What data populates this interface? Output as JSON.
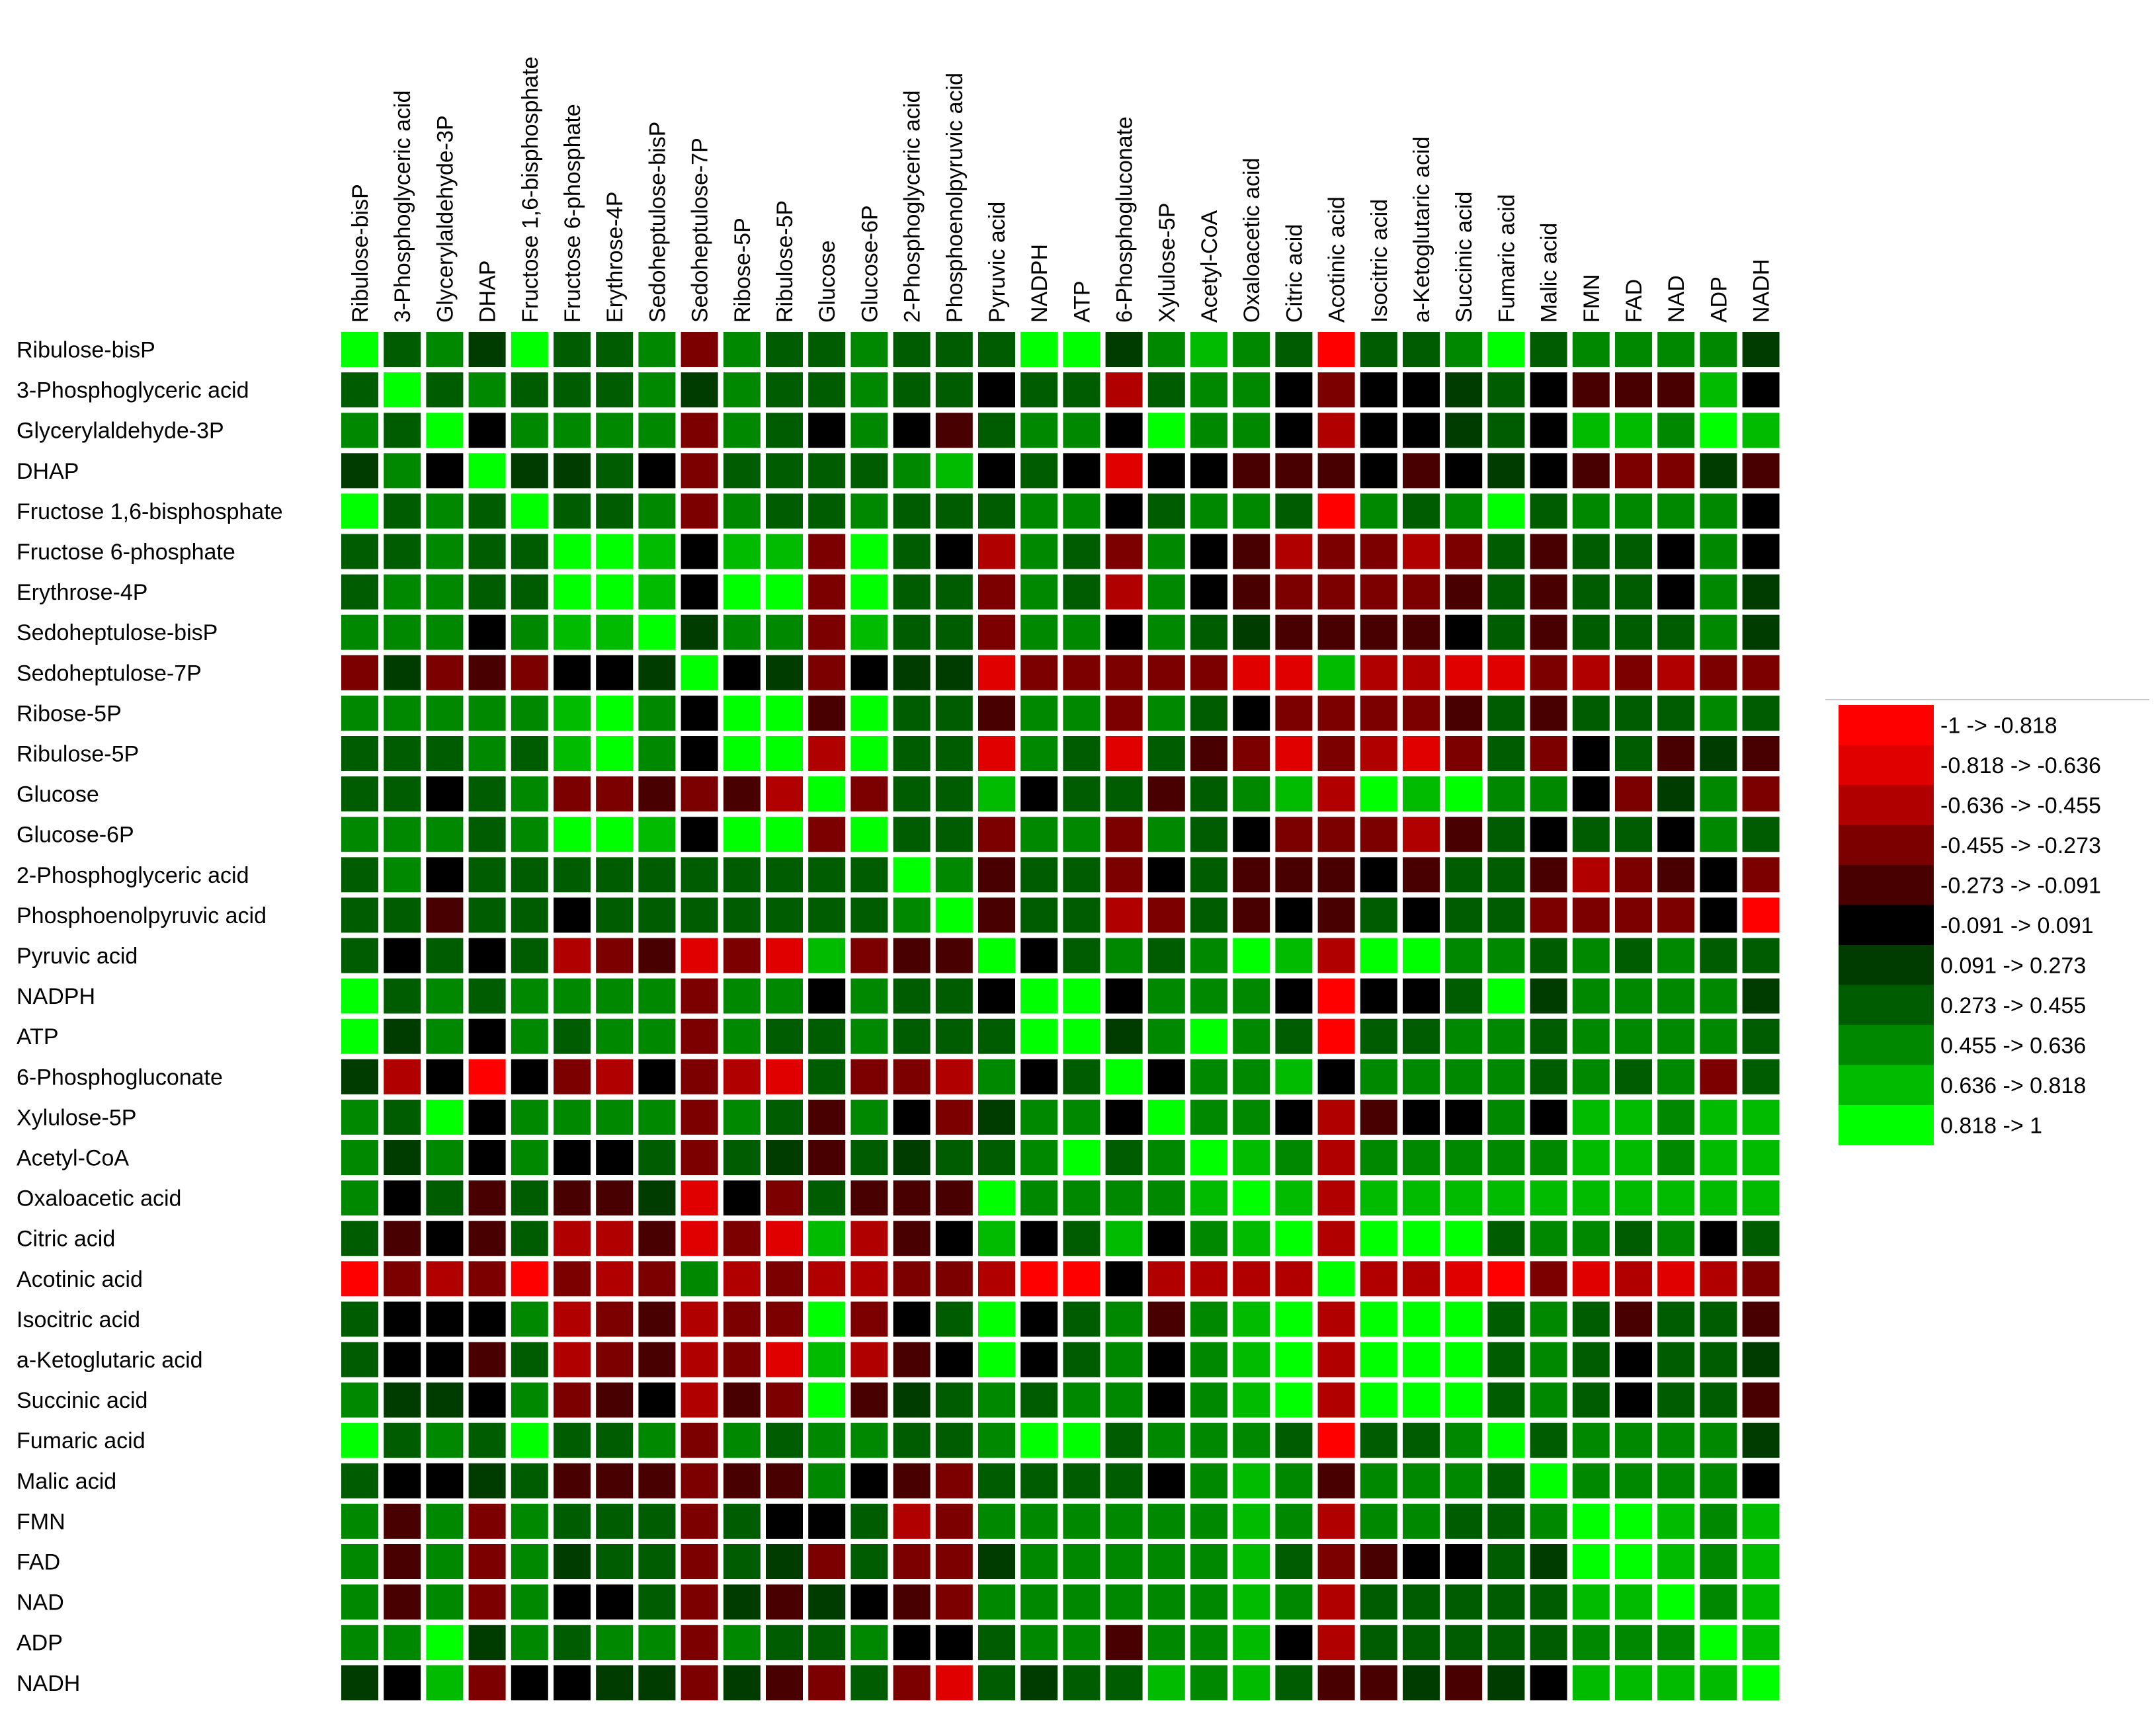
{
  "chart_data": {
    "type": "heatmap",
    "title": "",
    "rows": [
      "Ribulose-bisP",
      "3-Phosphoglyceric acid",
      "Glycerylaldehyde-3P",
      "DHAP",
      "Fructose 1,6-bisphosphate",
      "Fructose 6-phosphate",
      "Erythrose-4P",
      "Sedoheptulose-bisP",
      "Sedoheptulose-7P",
      "Ribose-5P",
      "Ribulose-5P",
      "Glucose",
      "Glucose-6P",
      "2-Phosphoglyceric acid",
      "Phosphoenolpyruvic acid",
      "Pyruvic acid",
      "NADPH",
      "ATP",
      "6-Phosphogluconate",
      "Xylulose-5P",
      "Acetyl-CoA",
      "Oxaloacetic acid",
      "Citric acid",
      "Acotinic acid",
      "Isocitric acid",
      "a-Ketoglutaric acid",
      "Succinic acid",
      "Fumaric acid",
      "Malic acid",
      "FMN",
      "FAD",
      "NAD",
      "ADP",
      "NADH"
    ],
    "columns": [
      "Ribulose-bisP",
      "3-Phosphoglyceric acid",
      "Glycerylaldehyde-3P",
      "DHAP",
      "Fructose 1,6-bisphosphate",
      "Fructose 6-phosphate",
      "Erythrose-4P",
      "Sedoheptulose-bisP",
      "Sedoheptulose-7P",
      "Ribose-5P",
      "Ribulose-5P",
      "Glucose",
      "Glucose-6P",
      "2-Phosphoglyceric acid",
      "Phosphoenolpyruvic acid",
      "Pyruvic acid",
      "NADPH",
      "ATP",
      "6-Phosphogluconate",
      "Xylulose-5P",
      "Acetyl-CoA",
      "Oxaloacetic acid",
      "Citric acid",
      "Acotinic acid",
      "Isocitric acid",
      "a-Ketoglutaric acid",
      "Succinic acid",
      "Fumaric acid",
      "Malic acid",
      "FMN",
      "FAD",
      "NAD",
      "ADP",
      "NADH"
    ],
    "legend": {
      "position": "right",
      "bins": [
        {
          "label": "-1 -> -0.818",
          "color": "#ff0000"
        },
        {
          "label": "-0.818 -> -0.636",
          "color": "#e00000"
        },
        {
          "label": "-0.636 -> -0.455",
          "color": "#b00000"
        },
        {
          "label": "-0.455 -> -0.273",
          "color": "#7d0000"
        },
        {
          "label": "-0.273 -> -0.091",
          "color": "#480000"
        },
        {
          "label": "-0.091 -> 0.091",
          "color": "#000000"
        },
        {
          "label": "0.091 -> 0.273",
          "color": "#003b00"
        },
        {
          "label": "0.273 -> 0.455",
          "color": "#005c00"
        },
        {
          "label": "0.455 -> 0.636",
          "color": "#008800"
        },
        {
          "label": "0.636 -> 0.818",
          "color": "#00bb00"
        },
        {
          "label": "0.818 -> 1",
          "color": "#00ff00"
        }
      ]
    },
    "values": [
      [
        10,
        7,
        8,
        6,
        10,
        7,
        7,
        8,
        3,
        8,
        7,
        7,
        8,
        7,
        7,
        7,
        10,
        10,
        6,
        8,
        9,
        8,
        7,
        0,
        7,
        7,
        8,
        10,
        7,
        8,
        8,
        8,
        8,
        6
      ],
      [
        7,
        10,
        7,
        8,
        7,
        7,
        7,
        8,
        6,
        8,
        7,
        7,
        8,
        7,
        7,
        5,
        7,
        7,
        2,
        7,
        8,
        8,
        5,
        3,
        5,
        5,
        6,
        7,
        5,
        4,
        4,
        4,
        9,
        5
      ],
      [
        8,
        7,
        10,
        5,
        8,
        8,
        8,
        8,
        3,
        8,
        7,
        5,
        8,
        5,
        4,
        7,
        8,
        8,
        5,
        10,
        8,
        8,
        5,
        2,
        5,
        5,
        6,
        7,
        5,
        9,
        9,
        8,
        10,
        9
      ],
      [
        6,
        8,
        5,
        10,
        6,
        6,
        7,
        5,
        3,
        7,
        7,
        7,
        7,
        8,
        9,
        5,
        7,
        5,
        1,
        5,
        5,
        4,
        4,
        4,
        5,
        4,
        5,
        6,
        5,
        4,
        3,
        3,
        6,
        4
      ],
      [
        10,
        7,
        8,
        7,
        10,
        7,
        7,
        8,
        3,
        8,
        7,
        7,
        8,
        7,
        7,
        7,
        8,
        8,
        5,
        7,
        8,
        8,
        7,
        0,
        8,
        7,
        8,
        10,
        7,
        8,
        8,
        8,
        8,
        5
      ],
      [
        7,
        7,
        8,
        7,
        7,
        10,
        10,
        9,
        5,
        9,
        9,
        3,
        10,
        7,
        5,
        2,
        8,
        7,
        3,
        8,
        5,
        4,
        2,
        3,
        3,
        2,
        3,
        7,
        4,
        7,
        7,
        5,
        8,
        5
      ],
      [
        7,
        8,
        8,
        7,
        7,
        10,
        10,
        9,
        5,
        10,
        10,
        3,
        10,
        7,
        7,
        3,
        8,
        7,
        2,
        8,
        5,
        4,
        3,
        3,
        3,
        3,
        4,
        7,
        4,
        7,
        7,
        5,
        8,
        6
      ],
      [
        8,
        8,
        8,
        5,
        8,
        9,
        9,
        10,
        6,
        8,
        8,
        3,
        9,
        7,
        7,
        3,
        8,
        8,
        5,
        8,
        7,
        6,
        4,
        4,
        4,
        4,
        5,
        7,
        4,
        7,
        7,
        7,
        8,
        6
      ],
      [
        3,
        6,
        3,
        4,
        3,
        5,
        5,
        6,
        10,
        5,
        6,
        3,
        5,
        6,
        6,
        1,
        3,
        3,
        3,
        3,
        3,
        1,
        1,
        9,
        2,
        2,
        1,
        1,
        3,
        2,
        3,
        2,
        3,
        3
      ],
      [
        8,
        8,
        8,
        8,
        8,
        9,
        10,
        8,
        5,
        10,
        10,
        4,
        10,
        7,
        7,
        4,
        8,
        8,
        3,
        8,
        7,
        5,
        3,
        3,
        3,
        3,
        4,
        7,
        4,
        7,
        7,
        7,
        8,
        7
      ],
      [
        7,
        7,
        7,
        8,
        7,
        9,
        10,
        8,
        5,
        10,
        10,
        2,
        10,
        7,
        7,
        1,
        8,
        7,
        1,
        7,
        4,
        3,
        1,
        3,
        2,
        1,
        3,
        7,
        3,
        5,
        7,
        4,
        6,
        4
      ],
      [
        7,
        7,
        5,
        7,
        8,
        3,
        3,
        4,
        3,
        4,
        2,
        10,
        3,
        7,
        7,
        9,
        5,
        7,
        7,
        4,
        7,
        8,
        9,
        2,
        10,
        9,
        10,
        8,
        8,
        5,
        3,
        6,
        8,
        3
      ],
      [
        8,
        8,
        8,
        7,
        8,
        10,
        10,
        9,
        5,
        10,
        10,
        3,
        10,
        7,
        7,
        3,
        8,
        8,
        3,
        8,
        7,
        5,
        3,
        3,
        3,
        2,
        4,
        7,
        5,
        7,
        7,
        5,
        8,
        7
      ],
      [
        7,
        8,
        5,
        7,
        7,
        7,
        7,
        7,
        7,
        7,
        7,
        7,
        7,
        10,
        8,
        4,
        7,
        7,
        3,
        5,
        7,
        4,
        4,
        4,
        5,
        4,
        7,
        7,
        4,
        2,
        3,
        4,
        5,
        3
      ],
      [
        7,
        7,
        4,
        7,
        7,
        5,
        7,
        7,
        7,
        7,
        7,
        7,
        7,
        8,
        10,
        4,
        7,
        7,
        2,
        3,
        7,
        4,
        5,
        4,
        7,
        5,
        7,
        7,
        3,
        3,
        3,
        3,
        5,
        0
      ],
      [
        7,
        5,
        7,
        5,
        7,
        2,
        3,
        4,
        1,
        3,
        1,
        9,
        3,
        4,
        4,
        10,
        5,
        7,
        8,
        7,
        8,
        10,
        9,
        2,
        10,
        10,
        8,
        8,
        7,
        8,
        7,
        8,
        7,
        7
      ],
      [
        10,
        7,
        8,
        7,
        8,
        8,
        8,
        8,
        3,
        8,
        8,
        5,
        8,
        7,
        7,
        5,
        10,
        10,
        5,
        8,
        8,
        8,
        5,
        0,
        5,
        5,
        7,
        10,
        6,
        8,
        8,
        8,
        8,
        6
      ],
      [
        10,
        6,
        8,
        5,
        8,
        7,
        8,
        8,
        3,
        8,
        7,
        7,
        8,
        7,
        7,
        7,
        10,
        10,
        6,
        8,
        10,
        8,
        7,
        0,
        7,
        7,
        8,
        8,
        7,
        8,
        8,
        8,
        8,
        7
      ],
      [
        6,
        2,
        5,
        0,
        5,
        3,
        2,
        5,
        3,
        2,
        1,
        7,
        3,
        3,
        2,
        8,
        5,
        7,
        10,
        5,
        8,
        8,
        9,
        5,
        8,
        8,
        8,
        8,
        7,
        8,
        7,
        8,
        3,
        7
      ],
      [
        8,
        7,
        10,
        5,
        8,
        8,
        8,
        8,
        3,
        8,
        7,
        4,
        8,
        5,
        3,
        6,
        8,
        8,
        5,
        10,
        8,
        8,
        5,
        2,
        4,
        5,
        5,
        8,
        5,
        9,
        9,
        8,
        9,
        9
      ],
      [
        8,
        6,
        8,
        5,
        8,
        5,
        5,
        7,
        3,
        7,
        6,
        4,
        7,
        6,
        7,
        7,
        8,
        10,
        7,
        8,
        10,
        9,
        8,
        2,
        8,
        8,
        8,
        8,
        8,
        9,
        9,
        8,
        9,
        9
      ],
      [
        8,
        5,
        7,
        4,
        7,
        4,
        4,
        6,
        1,
        5,
        3,
        7,
        4,
        4,
        4,
        10,
        8,
        8,
        8,
        8,
        9,
        10,
        9,
        2,
        9,
        9,
        9,
        9,
        9,
        9,
        9,
        9,
        9,
        9
      ],
      [
        7,
        4,
        5,
        4,
        7,
        2,
        2,
        4,
        1,
        3,
        1,
        9,
        2,
        4,
        5,
        9,
        5,
        7,
        9,
        5,
        8,
        9,
        10,
        2,
        10,
        10,
        10,
        7,
        8,
        8,
        7,
        8,
        5,
        7
      ],
      [
        0,
        3,
        2,
        3,
        0,
        3,
        2,
        3,
        8,
        2,
        3,
        2,
        2,
        3,
        3,
        2,
        0,
        0,
        5,
        2,
        2,
        2,
        2,
        10,
        2,
        2,
        1,
        0,
        3,
        1,
        2,
        1,
        2,
        3
      ],
      [
        7,
        5,
        5,
        5,
        8,
        2,
        3,
        4,
        2,
        3,
        3,
        10,
        3,
        5,
        7,
        10,
        5,
        7,
        8,
        4,
        8,
        9,
        10,
        2,
        10,
        10,
        10,
        7,
        8,
        7,
        4,
        7,
        7,
        4
      ],
      [
        7,
        5,
        5,
        4,
        7,
        2,
        3,
        4,
        2,
        3,
        1,
        9,
        2,
        4,
        5,
        10,
        5,
        7,
        8,
        5,
        8,
        9,
        10,
        2,
        10,
        10,
        10,
        7,
        8,
        7,
        5,
        7,
        7,
        6
      ],
      [
        8,
        6,
        6,
        5,
        8,
        3,
        4,
        5,
        2,
        4,
        3,
        10,
        4,
        6,
        7,
        8,
        7,
        8,
        8,
        5,
        8,
        9,
        10,
        2,
        10,
        10,
        10,
        7,
        8,
        7,
        5,
        7,
        7,
        4
      ],
      [
        10,
        7,
        8,
        7,
        10,
        7,
        7,
        8,
        3,
        8,
        7,
        8,
        8,
        7,
        7,
        8,
        10,
        10,
        7,
        8,
        8,
        8,
        7,
        0,
        7,
        7,
        8,
        10,
        7,
        8,
        8,
        8,
        8,
        6
      ],
      [
        7,
        5,
        5,
        6,
        7,
        4,
        4,
        4,
        3,
        4,
        4,
        8,
        5,
        4,
        3,
        7,
        7,
        7,
        7,
        5,
        8,
        9,
        8,
        4,
        8,
        8,
        8,
        7,
        10,
        8,
        8,
        8,
        8,
        5
      ],
      [
        8,
        4,
        8,
        3,
        8,
        7,
        7,
        7,
        3,
        7,
        5,
        5,
        7,
        2,
        3,
        8,
        8,
        8,
        8,
        8,
        8,
        9,
        8,
        2,
        8,
        8,
        7,
        7,
        8,
        10,
        10,
        9,
        8,
        9
      ],
      [
        8,
        4,
        8,
        3,
        8,
        6,
        7,
        7,
        3,
        7,
        6,
        3,
        7,
        3,
        3,
        6,
        8,
        8,
        8,
        8,
        8,
        9,
        7,
        3,
        4,
        5,
        5,
        7,
        6,
        10,
        10,
        9,
        8,
        9
      ],
      [
        8,
        4,
        8,
        3,
        8,
        5,
        5,
        7,
        3,
        6,
        4,
        6,
        5,
        4,
        3,
        8,
        8,
        8,
        8,
        8,
        8,
        9,
        8,
        2,
        7,
        7,
        7,
        7,
        7,
        9,
        9,
        10,
        8,
        9
      ],
      [
        8,
        8,
        10,
        6,
        8,
        7,
        8,
        8,
        3,
        8,
        7,
        7,
        8,
        5,
        5,
        7,
        8,
        8,
        4,
        8,
        8,
        9,
        5,
        2,
        7,
        7,
        7,
        7,
        7,
        8,
        8,
        8,
        10,
        9
      ],
      [
        6,
        5,
        9,
        3,
        5,
        5,
        6,
        6,
        3,
        6,
        4,
        3,
        7,
        3,
        1,
        7,
        6,
        7,
        7,
        9,
        8,
        9,
        7,
        4,
        4,
        6,
        4,
        6,
        5,
        9,
        9,
        9,
        9,
        10
      ]
    ],
    "value_scale": "bin index 0-10 corresponding to legend bins"
  }
}
